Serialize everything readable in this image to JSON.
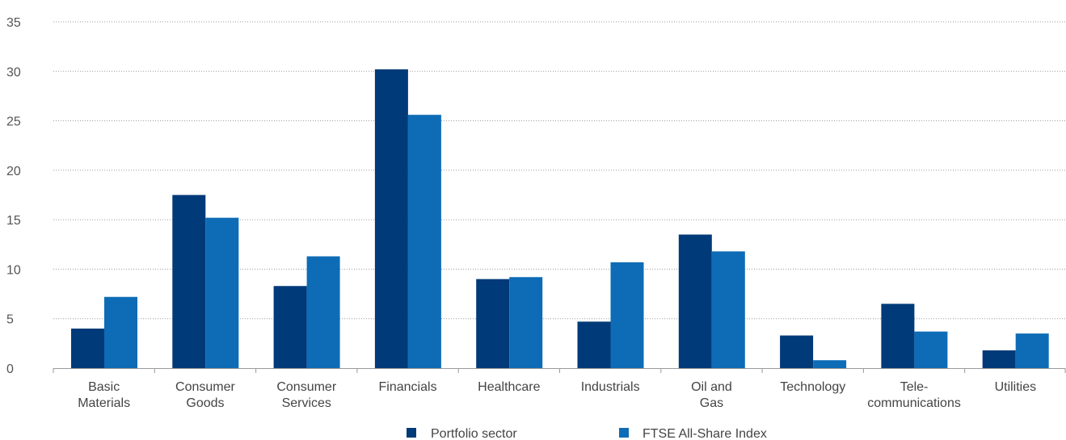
{
  "chart_data": {
    "type": "bar",
    "categories": [
      [
        "Basic",
        "Materials"
      ],
      [
        "Consumer",
        "Goods"
      ],
      [
        "Consumer",
        "Services"
      ],
      [
        "Financials"
      ],
      [
        "Healthcare"
      ],
      [
        "Industrials"
      ],
      [
        "Oil and",
        "Gas"
      ],
      [
        "Technology"
      ],
      [
        "Tele-",
        "communications"
      ],
      [
        "Utilities"
      ]
    ],
    "series": [
      {
        "name": "Portfolio sector",
        "color": "#003a78",
        "values": [
          4.0,
          17.5,
          8.3,
          30.2,
          9.0,
          4.7,
          13.5,
          3.3,
          6.5,
          1.8
        ]
      },
      {
        "name": "FTSE All-Share Index",
        "color": "#0e6cb6",
        "values": [
          7.2,
          15.2,
          11.3,
          25.6,
          9.2,
          10.7,
          11.8,
          0.8,
          3.7,
          3.5
        ]
      }
    ],
    "y_ticks": [
      0,
      5,
      10,
      15,
      20,
      25,
      30,
      35
    ],
    "ylim": [
      0,
      35
    ],
    "grid": "horizontal dotted",
    "legend_position": "bottom-center",
    "title": "",
    "xlabel": "",
    "ylabel": ""
  }
}
